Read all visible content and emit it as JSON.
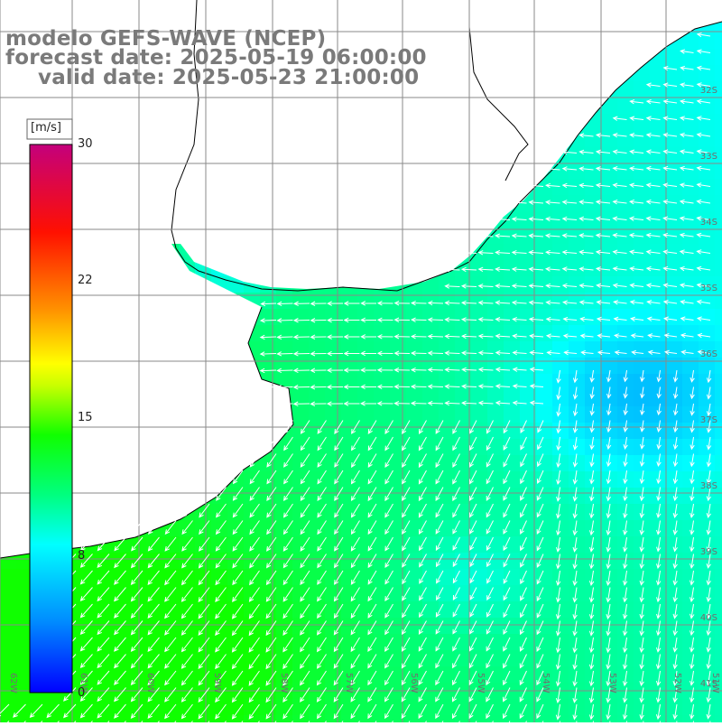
{
  "header": {
    "model": "modelo GEFS-WAVE (NCEP)",
    "forecast": "forecast date: 2025-05-19 06:00:00",
    "valid": "valid date: 2025-05-23 21:00:00"
  },
  "colorbar": {
    "units": "[m/s]",
    "ticks": [
      "30",
      "22",
      "15",
      "8",
      "0"
    ],
    "colors": [
      "#0000ff",
      "#00a0ff",
      "#00ffff",
      "#00ff00",
      "#ffff00",
      "#ff7800",
      "#ff0000",
      "#c8007c"
    ]
  },
  "map": {
    "lat_labels": [
      "32S",
      "33S",
      "34S",
      "35S",
      "36S",
      "37S",
      "38S",
      "39S",
      "40S",
      "41S"
    ],
    "lon_labels": [
      "62W",
      "61W",
      "60W",
      "59W",
      "58W",
      "57W",
      "56W",
      "55W",
      "54W",
      "53W",
      "52W",
      "51W"
    ],
    "ocean_color": "#29f0e0",
    "land_color": "#ffffff"
  }
}
